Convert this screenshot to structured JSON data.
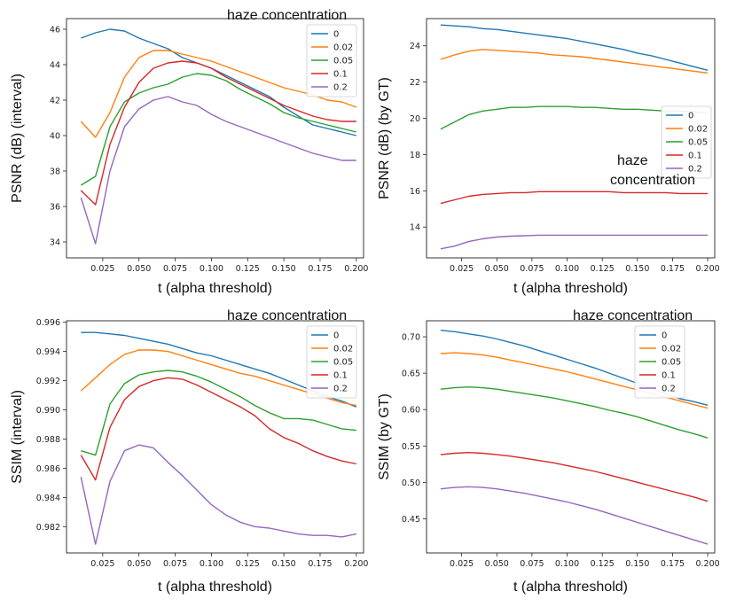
{
  "colors": {
    "c0": "#1f77b4",
    "c002": "#ff7f0e",
    "c005": "#2ca02c",
    "c01": "#d62728",
    "c02": "#9467bd"
  },
  "chart_data": [
    {
      "id": "psnr_interval",
      "type": "line",
      "xlabel": "t (alpha threshold)",
      "ylabel": "PSNR (dB) (interval)",
      "annotation": "haze concentration",
      "xlim": [
        0.0,
        0.205
      ],
      "ylim": [
        33.1,
        46.6
      ],
      "xticks": [
        "0.025",
        "0.050",
        "0.075",
        "0.100",
        "0.125",
        "0.150",
        "0.175",
        "0.200"
      ],
      "yticks": [
        "34",
        "36",
        "38",
        "40",
        "42",
        "44",
        "46"
      ],
      "legend": [
        "0",
        "0.02",
        "0.05",
        "0.1",
        "0.2"
      ],
      "legend_position": "top-right",
      "x": [
        0.01,
        0.02,
        0.03,
        0.04,
        0.05,
        0.06,
        0.07,
        0.08,
        0.09,
        0.1,
        0.11,
        0.12,
        0.13,
        0.14,
        0.15,
        0.16,
        0.17,
        0.18,
        0.19,
        0.2
      ],
      "series": [
        {
          "name": "0",
          "values": [
            45.5,
            45.8,
            46.0,
            45.9,
            45.5,
            45.2,
            44.9,
            44.4,
            44.1,
            43.8,
            43.4,
            43.0,
            42.6,
            42.2,
            41.6,
            41.1,
            40.6,
            40.4,
            40.2,
            40.0
          ]
        },
        {
          "name": "0.02",
          "values": [
            40.8,
            39.9,
            41.3,
            43.3,
            44.4,
            44.8,
            44.8,
            44.6,
            44.4,
            44.2,
            43.9,
            43.6,
            43.3,
            43.0,
            42.7,
            42.5,
            42.3,
            42.0,
            41.9,
            41.6
          ]
        },
        {
          "name": "0.05",
          "values": [
            37.2,
            37.7,
            40.5,
            41.9,
            42.4,
            42.7,
            42.9,
            43.3,
            43.5,
            43.4,
            43.1,
            42.6,
            42.2,
            41.8,
            41.3,
            41.0,
            40.8,
            40.6,
            40.4,
            40.2
          ]
        },
        {
          "name": "0.1",
          "values": [
            36.9,
            36.1,
            39.5,
            41.6,
            43.0,
            43.8,
            44.1,
            44.2,
            44.1,
            43.8,
            43.3,
            42.9,
            42.5,
            42.1,
            41.7,
            41.4,
            41.1,
            40.9,
            40.8,
            40.8
          ]
        },
        {
          "name": "0.2",
          "values": [
            36.5,
            33.9,
            38.0,
            40.5,
            41.5,
            42.0,
            42.2,
            41.9,
            41.7,
            41.2,
            40.8,
            40.5,
            40.2,
            39.9,
            39.6,
            39.3,
            39.0,
            38.8,
            38.6,
            38.6
          ]
        }
      ]
    },
    {
      "id": "psnr_gt",
      "type": "line",
      "xlabel": "t (alpha threshold)",
      "ylabel": "PSNR (dB)  (by GT)",
      "annotation": "haze\nconcentration",
      "xlim": [
        0.0,
        0.205
      ],
      "ylim": [
        12.3,
        25.5
      ],
      "xticks": [
        "0.025",
        "0.050",
        "0.075",
        "0.100",
        "0.125",
        "0.150",
        "0.175",
        "0.200"
      ],
      "yticks": [
        "14",
        "16",
        "18",
        "20",
        "22",
        "24"
      ],
      "legend": [
        "0",
        "0.02",
        "0.05",
        "0.1",
        "0.2"
      ],
      "legend_position": "center-right",
      "x": [
        0.01,
        0.02,
        0.03,
        0.04,
        0.05,
        0.06,
        0.07,
        0.08,
        0.09,
        0.1,
        0.11,
        0.12,
        0.13,
        0.14,
        0.15,
        0.16,
        0.17,
        0.18,
        0.19,
        0.2
      ],
      "series": [
        {
          "name": "0",
          "values": [
            25.15,
            25.1,
            25.05,
            24.95,
            24.9,
            24.8,
            24.7,
            24.6,
            24.5,
            24.4,
            24.25,
            24.1,
            23.95,
            23.8,
            23.6,
            23.45,
            23.25,
            23.05,
            22.85,
            22.65
          ]
        },
        {
          "name": "0.02",
          "values": [
            23.25,
            23.5,
            23.7,
            23.8,
            23.75,
            23.7,
            23.65,
            23.6,
            23.5,
            23.45,
            23.4,
            23.3,
            23.2,
            23.1,
            23.0,
            22.9,
            22.8,
            22.7,
            22.6,
            22.5
          ]
        },
        {
          "name": "0.05",
          "values": [
            19.4,
            19.8,
            20.2,
            20.4,
            20.5,
            20.6,
            20.6,
            20.65,
            20.65,
            20.65,
            20.6,
            20.6,
            20.55,
            20.5,
            20.5,
            20.45,
            20.4,
            20.4,
            20.35,
            20.3
          ]
        },
        {
          "name": "0.1",
          "values": [
            15.3,
            15.5,
            15.7,
            15.8,
            15.85,
            15.9,
            15.9,
            15.95,
            15.95,
            15.95,
            15.95,
            15.95,
            15.95,
            15.9,
            15.9,
            15.9,
            15.9,
            15.85,
            15.85,
            15.85
          ]
        },
        {
          "name": "0.2",
          "values": [
            12.8,
            12.95,
            13.2,
            13.35,
            13.45,
            13.5,
            13.52,
            13.55,
            13.55,
            13.55,
            13.55,
            13.55,
            13.55,
            13.55,
            13.55,
            13.55,
            13.55,
            13.55,
            13.55,
            13.55
          ]
        }
      ]
    },
    {
      "id": "ssim_interval",
      "type": "line",
      "xlabel": "t (alpha threshold)",
      "ylabel": "SSIM (interval)",
      "annotation": "haze concentration",
      "xlim": [
        0.0,
        0.205
      ],
      "ylim": [
        0.9802,
        0.9961
      ],
      "xticks": [
        "0.025",
        "0.050",
        "0.075",
        "0.100",
        "0.125",
        "0.150",
        "0.175",
        "0.200"
      ],
      "yticks": [
        "0.982",
        "0.984",
        "0.986",
        "0.988",
        "0.990",
        "0.992",
        "0.994",
        "0.996"
      ],
      "legend": [
        "0",
        "0.02",
        "0.05",
        "0.1",
        "0.2"
      ],
      "legend_position": "top-right",
      "x": [
        0.01,
        0.02,
        0.03,
        0.04,
        0.05,
        0.06,
        0.07,
        0.08,
        0.09,
        0.1,
        0.11,
        0.12,
        0.13,
        0.14,
        0.15,
        0.16,
        0.17,
        0.18,
        0.19,
        0.2
      ],
      "series": [
        {
          "name": "0",
          "values": [
            0.9953,
            0.9953,
            0.9952,
            0.9951,
            0.9949,
            0.9947,
            0.9945,
            0.9942,
            0.9939,
            0.9937,
            0.9934,
            0.9931,
            0.9928,
            0.9925,
            0.9921,
            0.9917,
            0.9913,
            0.9909,
            0.9906,
            0.9902
          ]
        },
        {
          "name": "0.02",
          "values": [
            0.9913,
            0.9922,
            0.9931,
            0.9938,
            0.9941,
            0.9941,
            0.994,
            0.9937,
            0.9934,
            0.9931,
            0.9928,
            0.9925,
            0.9923,
            0.992,
            0.9917,
            0.9914,
            0.9911,
            0.9908,
            0.9905,
            0.9903
          ]
        },
        {
          "name": "0.05",
          "values": [
            0.9872,
            0.9869,
            0.9904,
            0.9918,
            0.9924,
            0.9926,
            0.9927,
            0.9926,
            0.9923,
            0.9919,
            0.9914,
            0.9909,
            0.9903,
            0.9898,
            0.9894,
            0.9894,
            0.9893,
            0.989,
            0.9887,
            0.9886
          ]
        },
        {
          "name": "0.1",
          "values": [
            0.9869,
            0.9852,
            0.9888,
            0.9907,
            0.9916,
            0.992,
            0.9922,
            0.9921,
            0.9917,
            0.9912,
            0.9907,
            0.9902,
            0.9896,
            0.9887,
            0.9881,
            0.9877,
            0.9872,
            0.9868,
            0.9865,
            0.9863
          ]
        },
        {
          "name": "0.2",
          "values": [
            0.9854,
            0.9808,
            0.9851,
            0.9872,
            0.9876,
            0.9874,
            0.9864,
            0.9855,
            0.9845,
            0.9835,
            0.9828,
            0.9823,
            0.982,
            0.9819,
            0.9817,
            0.9815,
            0.9814,
            0.9814,
            0.9813,
            0.9815
          ]
        }
      ]
    },
    {
      "id": "ssim_gt",
      "type": "line",
      "xlabel": "t (alpha threshold)",
      "ylabel": "SSIM (by GT)",
      "annotation": "haze concentration",
      "xlim": [
        0.0,
        0.205
      ],
      "ylim": [
        0.403,
        0.722
      ],
      "xticks": [
        "0.025",
        "0.050",
        "0.075",
        "0.100",
        "0.125",
        "0.150",
        "0.175",
        "0.200"
      ],
      "yticks": [
        "0.45",
        "0.50",
        "0.55",
        "0.60",
        "0.65",
        "0.70"
      ],
      "legend": [
        "0",
        "0.02",
        "0.05",
        "0.1",
        "0.2"
      ],
      "legend_position": "top-right",
      "x": [
        0.01,
        0.02,
        0.03,
        0.04,
        0.05,
        0.06,
        0.07,
        0.08,
        0.09,
        0.1,
        0.11,
        0.12,
        0.13,
        0.14,
        0.15,
        0.16,
        0.17,
        0.18,
        0.19,
        0.2
      ],
      "series": [
        {
          "name": "0",
          "values": [
            0.709,
            0.707,
            0.704,
            0.701,
            0.697,
            0.692,
            0.687,
            0.681,
            0.675,
            0.669,
            0.663,
            0.657,
            0.65,
            0.643,
            0.636,
            0.629,
            0.622,
            0.615,
            0.611,
            0.606
          ]
        },
        {
          "name": "0.02",
          "values": [
            0.677,
            0.678,
            0.677,
            0.675,
            0.672,
            0.668,
            0.664,
            0.66,
            0.656,
            0.652,
            0.647,
            0.642,
            0.637,
            0.632,
            0.627,
            0.622,
            0.617,
            0.612,
            0.607,
            0.602
          ]
        },
        {
          "name": "0.05",
          "values": [
            0.628,
            0.63,
            0.631,
            0.63,
            0.628,
            0.625,
            0.622,
            0.619,
            0.616,
            0.612,
            0.608,
            0.604,
            0.599,
            0.595,
            0.59,
            0.584,
            0.578,
            0.572,
            0.567,
            0.561
          ]
        },
        {
          "name": "0.1",
          "values": [
            0.538,
            0.54,
            0.541,
            0.54,
            0.538,
            0.536,
            0.533,
            0.53,
            0.527,
            0.523,
            0.519,
            0.515,
            0.51,
            0.505,
            0.5,
            0.495,
            0.49,
            0.485,
            0.48,
            0.474
          ]
        },
        {
          "name": "0.2",
          "values": [
            0.491,
            0.493,
            0.494,
            0.493,
            0.491,
            0.488,
            0.485,
            0.481,
            0.477,
            0.473,
            0.468,
            0.463,
            0.457,
            0.451,
            0.445,
            0.439,
            0.433,
            0.427,
            0.421,
            0.415
          ]
        }
      ]
    }
  ]
}
